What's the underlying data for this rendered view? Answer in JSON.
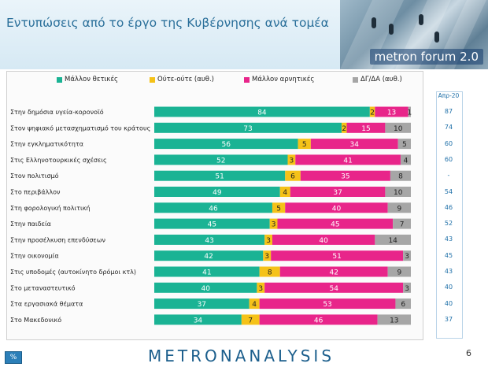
{
  "page": {
    "title": "Εντυπώσεις από το έργο της Κυβέρνησης ανά τομέα",
    "brand": "metron forum 2.0",
    "footer": "METRONANALYSIS",
    "page_number": "6",
    "corner_mark": "%"
  },
  "colors": {
    "positive": "#1ab394",
    "neutral": "#f5c218",
    "negative": "#e8258a",
    "dk": "#a6a6a6"
  },
  "comparison": {
    "header": "Απρ-20",
    "values": [
      "87",
      "74",
      "60",
      "60",
      "-",
      "54",
      "46",
      "52",
      "43",
      "45",
      "43",
      "40",
      "40",
      "37"
    ]
  },
  "chart_data": {
    "type": "bar",
    "orientation": "horizontal",
    "stacked": true,
    "xlim": [
      0,
      100
    ],
    "categories": [
      "Στην δημόσια υγεία-κορονοϊό",
      "Στον ψηφιακό μετασχηματισμό του κράτους",
      "Στην εγκληματικότητα",
      "Στις Ελληνοτουρκικές σχέσεις",
      "Στον πολιτισμό",
      "Στο περιβάλλον",
      "Στη φορολογική πολιτική",
      "Στην παιδεία",
      "Στην προσέλκυση επενδύσεων",
      "Στην οικονομία",
      "Στις υποδομές (αυτοκίνητο δρόμοι κτλ)",
      "Στο μεταναστευτικό",
      "Στα εργασιακά θέματα",
      "Στο Μακεδονικό"
    ],
    "series": [
      {
        "name": "Μάλλον θετικές",
        "values": [
          84,
          73,
          56,
          52,
          51,
          49,
          46,
          45,
          43,
          42,
          41,
          40,
          37,
          34
        ]
      },
      {
        "name": "Ούτε-ούτε  (αυθ.)",
        "values": [
          2,
          2,
          5,
          3,
          6,
          4,
          5,
          3,
          3,
          3,
          8,
          3,
          4,
          7
        ]
      },
      {
        "name": "Μάλλον αρνητικές",
        "values": [
          13,
          15,
          34,
          41,
          35,
          37,
          40,
          45,
          40,
          51,
          42,
          54,
          53,
          46
        ]
      },
      {
        "name": "ΔΓ/ΔΑ (αυθ.)",
        "values": [
          1,
          10,
          5,
          4,
          8,
          10,
          9,
          7,
          14,
          3,
          9,
          3,
          6,
          13
        ]
      }
    ]
  }
}
